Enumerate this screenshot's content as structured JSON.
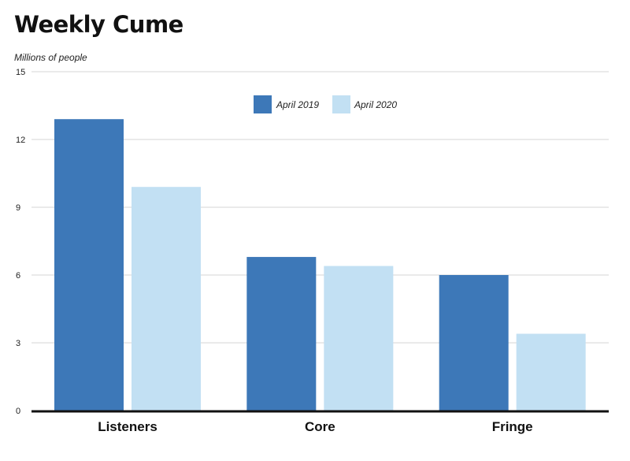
{
  "chart_data": {
    "type": "bar",
    "title": "Weekly Cume",
    "ylabel": "Millions of people",
    "xlabel": "",
    "categories": [
      "Listeners",
      "Core",
      "Fringe"
    ],
    "series": [
      {
        "name": "April 2019",
        "values": [
          12.9,
          6.8,
          6.0
        ]
      },
      {
        "name": "April 2020",
        "values": [
          9.9,
          6.4,
          3.4
        ]
      }
    ],
    "ylim": [
      0,
      15
    ],
    "yticks": [
      0,
      3,
      6,
      9,
      12,
      15
    ],
    "grid": true,
    "legend_position": "top-center",
    "colors": {
      "April 2019": "#3d78b8",
      "April 2020": "#c2e0f3"
    }
  }
}
